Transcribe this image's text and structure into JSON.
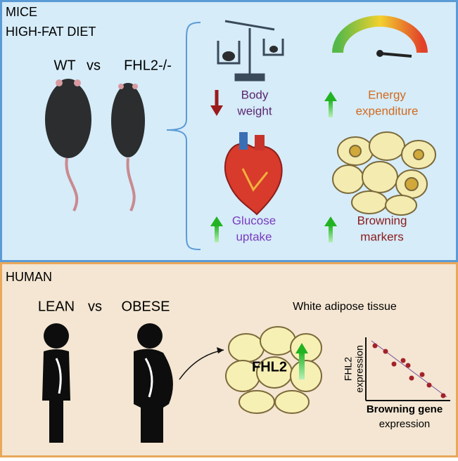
{
  "mice_panel": {
    "title": "MICE",
    "condition": "HIGH-FAT DIET",
    "comparison": {
      "left": "WT",
      "vs": "vs",
      "right": "FHL2-/-"
    },
    "effects": [
      {
        "lines": [
          "Body",
          "weight"
        ]
      },
      {
        "lines": [
          "Energy",
          "expenditure"
        ]
      },
      {
        "lines": [
          "Glucose",
          "uptake"
        ]
      },
      {
        "lines": [
          "Browning",
          "markers"
        ]
      }
    ]
  },
  "human_panel": {
    "title": "HUMAN",
    "comparison": {
      "left": "LEAN",
      "vs": "vs",
      "right": "OBESE"
    },
    "tissue": "White adipose tissue",
    "marker": "FHL2",
    "plot": {
      "y_label_lines": [
        "FHL2",
        "expression"
      ],
      "x_label_lines": [
        "Browning gene",
        "expression"
      ]
    }
  }
}
